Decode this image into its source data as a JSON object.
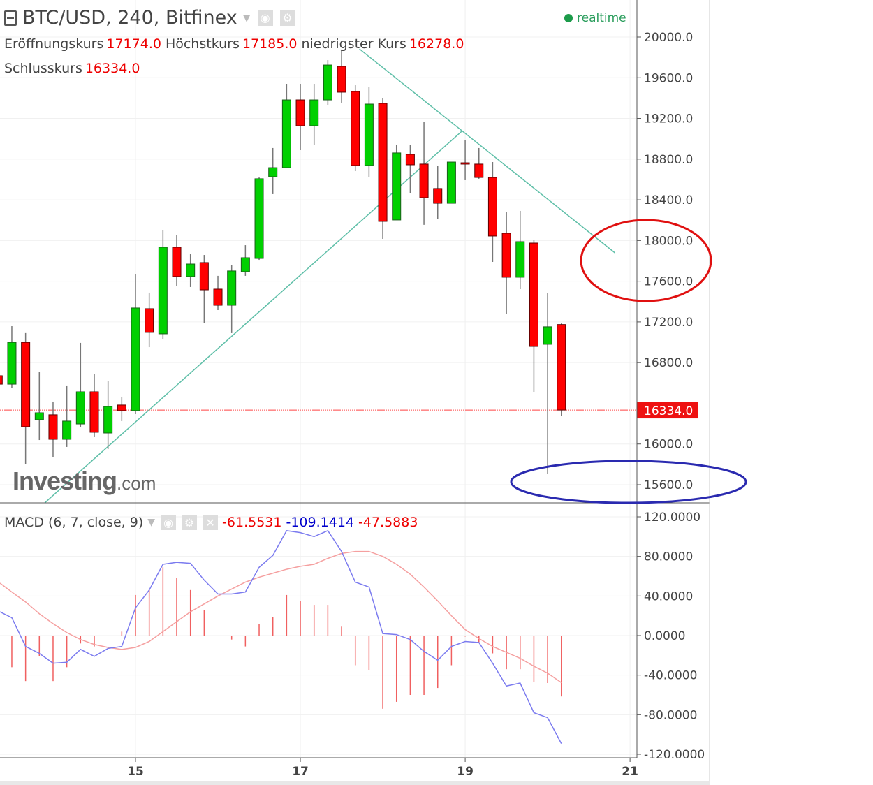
{
  "header": {
    "title": "BTC/USD, 240, Bitfinex",
    "realtime": "realtime",
    "open_label": "Eröffnungskurs",
    "open": "17174.0",
    "high_label": "Höchstkurs",
    "high": "17185.0",
    "low_label": "niedrigster Kurs",
    "low": "16278.0",
    "close_label": "Schlusskurs",
    "close": "16334.0"
  },
  "macd_header": {
    "label": "MACD (6, 7, close, 9)",
    "hist": "-61.5531",
    "macd": "-109.1414",
    "signal": "-47.5883"
  },
  "watermark": {
    "brand": "Investing",
    "suffix": ".com"
  },
  "colors": {
    "up": "#00d000",
    "down": "#ff0000",
    "trend": "#5fbfa8",
    "macd": "#7b7bef",
    "signal": "#f5a0a0",
    "hist": "#f06060",
    "circle_red": "#e01010",
    "circle_blue": "#2a2ab0"
  },
  "chart_data": [
    {
      "type": "candlestick",
      "title": "BTC/USD, 240, Bitfinex",
      "y_ticks": [
        "20000.0",
        "19600.0",
        "19200.0",
        "18800.0",
        "18400.0",
        "18000.0",
        "17600.0",
        "17200.0",
        "16800.0",
        "16000.0",
        "15600.0"
      ],
      "y_tick_values": [
        20000,
        19600,
        19200,
        18800,
        18400,
        18000,
        17600,
        17200,
        16800,
        16000,
        15600
      ],
      "ylim": [
        15400,
        20300
      ],
      "current_price": {
        "value": 16334,
        "label": "16334.0"
      },
      "x_ticks": [
        {
          "index": 10,
          "label": "15"
        },
        {
          "index": 22,
          "label": "17"
        },
        {
          "index": 34,
          "label": "19"
        },
        {
          "index": 46,
          "label": "21"
        }
      ],
      "ohlc": [
        [
          16671,
          16700,
          16560,
          16588
        ],
        [
          16588,
          17158,
          16554,
          16999
        ],
        [
          16999,
          17090,
          15799,
          16170
        ],
        [
          16239,
          16705,
          16039,
          16307
        ],
        [
          16287,
          16417,
          15868,
          16046
        ],
        [
          16046,
          16575,
          15971,
          16225
        ],
        [
          16197,
          16994,
          16163,
          16513
        ],
        [
          16513,
          16685,
          16067,
          16115
        ],
        [
          16108,
          16616,
          15950,
          16369
        ],
        [
          16383,
          16465,
          16225,
          16328
        ],
        [
          16328,
          17673,
          16293,
          17337
        ],
        [
          17330,
          17488,
          16952,
          17097
        ],
        [
          17083,
          18099,
          17035,
          17934
        ],
        [
          17934,
          18057,
          17550,
          17646
        ],
        [
          17646,
          17865,
          17543,
          17769
        ],
        [
          17783,
          17858,
          17186,
          17515
        ],
        [
          17522,
          17653,
          17316,
          17364
        ],
        [
          17364,
          17762,
          17090,
          17701
        ],
        [
          17694,
          17954,
          17653,
          17831
        ],
        [
          17824,
          18620,
          17810,
          18607
        ],
        [
          18627,
          18909,
          18456,
          18716
        ],
        [
          18716,
          19540,
          18716,
          19382
        ],
        [
          19382,
          19540,
          18888,
          19128
        ],
        [
          19128,
          19540,
          18936,
          19382
        ],
        [
          19382,
          19773,
          19334,
          19725
        ],
        [
          19712,
          19870,
          19355,
          19458
        ],
        [
          19465,
          19526,
          18682,
          18737
        ],
        [
          18737,
          19513,
          18620,
          19341
        ],
        [
          19348,
          19403,
          18016,
          18188
        ],
        [
          18202,
          18943,
          18202,
          18861
        ],
        [
          18847,
          18936,
          18469,
          18744
        ],
        [
          18751,
          19163,
          18154,
          18421
        ],
        [
          18511,
          18737,
          18215,
          18366
        ],
        [
          18366,
          18771,
          18366,
          18771
        ],
        [
          18764,
          18991,
          18593,
          18751
        ],
        [
          18751,
          18909,
          18607,
          18620
        ],
        [
          18620,
          18771,
          17790,
          18044
        ],
        [
          18071,
          18284,
          17275,
          17639
        ],
        [
          17639,
          18291,
          17522,
          17989
        ],
        [
          17975,
          18009,
          16506,
          16959
        ],
        [
          16980,
          17481,
          15710,
          17152
        ],
        [
          17174,
          17185,
          16278,
          16334
        ]
      ],
      "trend_lines": [
        {
          "from": [
            3.4,
            15422
          ],
          "to": [
            33.8,
            19080
          ]
        },
        {
          "from": [
            26.3,
            19883
          ],
          "to": [
            44.9,
            17879
          ]
        }
      ]
    },
    {
      "type": "line+bar",
      "title": "MACD (6, 7, close, 9)",
      "y_ticks": [
        "120.0000",
        "80.0000",
        "40.0000",
        "0.0000",
        "-40.0000",
        "-80.0000",
        "-120.0000"
      ],
      "y_tick_values": [
        120,
        80,
        40,
        0,
        -40,
        -80,
        -120
      ],
      "ylim": [
        -125,
        125
      ],
      "histogram": [
        null,
        -32,
        -46,
        -21,
        -46,
        -32,
        -8,
        -11,
        0,
        4,
        41,
        46,
        69,
        58,
        46,
        26,
        0,
        -4,
        -11,
        12,
        19,
        41,
        35,
        31,
        31,
        9,
        -30,
        -35,
        -74,
        -67,
        -60,
        -60,
        -53,
        -30,
        -1,
        -7,
        -18,
        -34,
        -34,
        -47,
        -48,
        -61.55
      ],
      "macd": [
        24,
        18,
        -11,
        -18,
        -28,
        -27,
        -14,
        -21,
        -13,
        -11,
        28,
        46,
        72,
        74,
        73,
        56,
        42,
        42,
        44,
        69,
        81,
        106,
        104,
        100,
        106,
        85,
        54,
        49,
        2,
        1,
        -4,
        -16,
        -25,
        -11,
        -6,
        -7,
        -28,
        -51,
        -48,
        -78,
        -83,
        -109.14
      ],
      "signal": [
        53,
        44,
        34,
        22,
        12,
        3,
        -4,
        -9,
        -12,
        -14,
        -12,
        -6,
        4,
        14,
        24,
        32,
        40,
        47,
        54,
        59,
        63,
        67,
        70,
        72,
        78,
        83,
        85,
        85,
        80,
        72,
        62,
        49,
        35,
        20,
        6,
        -3,
        -11,
        -17,
        -23,
        -31,
        -38,
        -47.59
      ]
    }
  ]
}
